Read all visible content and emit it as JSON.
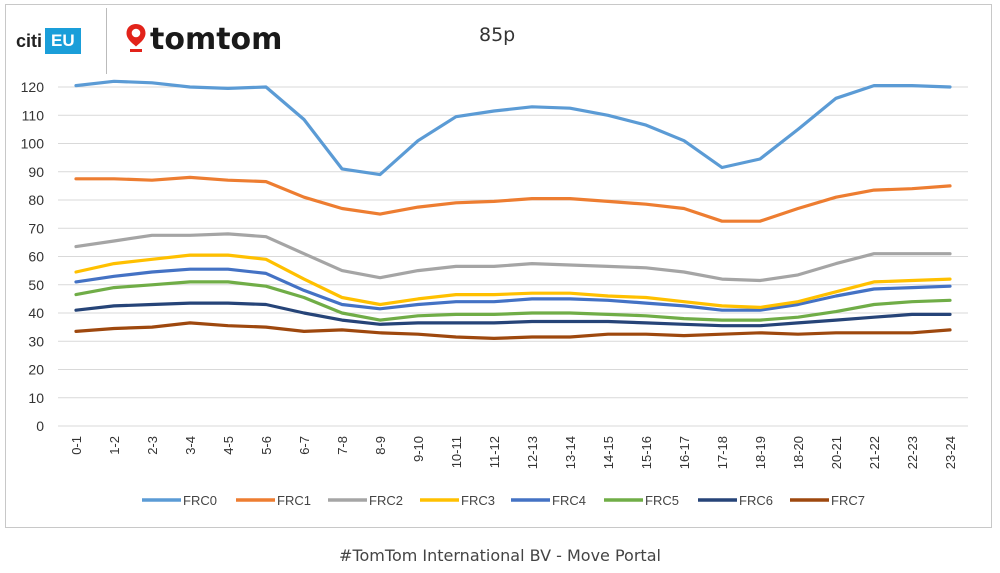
{
  "brand": {
    "citi_label": "citi",
    "eu_label": "EU",
    "tomtom_label": "tomtom"
  },
  "caption": "#TomTom International BV - Move Portal",
  "colors": {
    "FRC0": "#5b9bd5",
    "FRC1": "#ed7d31",
    "FRC2": "#a5a5a5",
    "FRC3": "#ffc000",
    "FRC4": "#4472c4",
    "FRC5": "#70ad47",
    "FRC6": "#264478",
    "FRC7": "#9e480e",
    "grid": "#d9d9d9",
    "pin": "#e2231a"
  },
  "chart_data": {
    "type": "line",
    "title": "85p",
    "xlabel": "",
    "ylabel": "",
    "ylim": [
      0,
      120
    ],
    "yticks": [
      "0",
      "10",
      "20",
      "30",
      "40",
      "50",
      "60",
      "70",
      "80",
      "90",
      "100",
      "110",
      "120"
    ],
    "categories": [
      "0-1",
      "1-2",
      "2-3",
      "3-4",
      "4-5",
      "5-6",
      "6-7",
      "7-8",
      "8-9",
      "9-10",
      "10-11",
      "11-12",
      "12-13",
      "13-14",
      "14-15",
      "15-16",
      "16-17",
      "17-18",
      "18-19",
      "18-20",
      "20-21",
      "21-22",
      "22-23",
      "23-24"
    ],
    "legend_position": "bottom",
    "series": [
      {
        "name": "FRC0",
        "values": [
          120.5,
          122,
          121.5,
          120,
          119.5,
          120,
          108.5,
          91,
          89,
          101,
          109.5,
          111.5,
          113,
          112.5,
          110,
          106.5,
          101,
          91.5,
          94.5,
          105,
          116,
          120.5,
          120.5,
          120
        ]
      },
      {
        "name": "FRC1",
        "values": [
          87.5,
          87.5,
          87,
          88,
          87,
          86.5,
          81,
          77,
          75,
          77.5,
          79,
          79.5,
          80.5,
          80.5,
          79.5,
          78.5,
          77,
          72.5,
          72.5,
          77,
          81,
          83.5,
          84,
          85
        ]
      },
      {
        "name": "FRC2",
        "values": [
          63.5,
          65.5,
          67.5,
          67.5,
          68,
          67,
          61,
          55,
          52.5,
          55,
          56.5,
          56.5,
          57.5,
          57,
          56.5,
          56,
          54.5,
          52,
          51.5,
          53.5,
          57.5,
          61,
          61,
          61
        ]
      },
      {
        "name": "FRC3",
        "values": [
          54.5,
          57.5,
          59,
          60.5,
          60.5,
          59,
          52,
          45.5,
          43,
          45,
          46.5,
          46.5,
          47,
          47,
          46,
          45.5,
          44,
          42.5,
          42,
          44,
          47.5,
          51,
          51.5,
          52
        ]
      },
      {
        "name": "FRC4",
        "values": [
          51,
          53,
          54.5,
          55.5,
          55.5,
          54,
          48,
          43,
          41.5,
          43,
          44,
          44,
          45,
          45,
          44.5,
          43.5,
          42.5,
          41,
          41,
          43,
          46,
          48.5,
          49,
          49.5
        ]
      },
      {
        "name": "FRC5",
        "values": [
          46.5,
          49,
          50,
          51,
          51,
          49.5,
          45.5,
          40,
          37.5,
          39,
          39.5,
          39.5,
          40,
          40,
          39.5,
          39,
          38,
          37.5,
          37.5,
          38.5,
          40.5,
          43,
          44,
          44.5
        ]
      },
      {
        "name": "FRC6",
        "values": [
          41,
          42.5,
          43,
          43.5,
          43.5,
          43,
          40,
          37.5,
          36,
          36.5,
          36.5,
          36.5,
          37,
          37,
          37,
          36.5,
          36,
          35.5,
          35.5,
          36.5,
          37.5,
          38.5,
          39.5,
          39.5
        ]
      },
      {
        "name": "FRC7",
        "values": [
          33.5,
          34.5,
          35,
          36.5,
          35.5,
          35,
          33.5,
          34,
          33,
          32.5,
          31.5,
          31,
          31.5,
          31.5,
          32.5,
          32.5,
          32,
          32.5,
          33,
          32.5,
          33,
          33,
          33,
          34
        ]
      }
    ]
  }
}
